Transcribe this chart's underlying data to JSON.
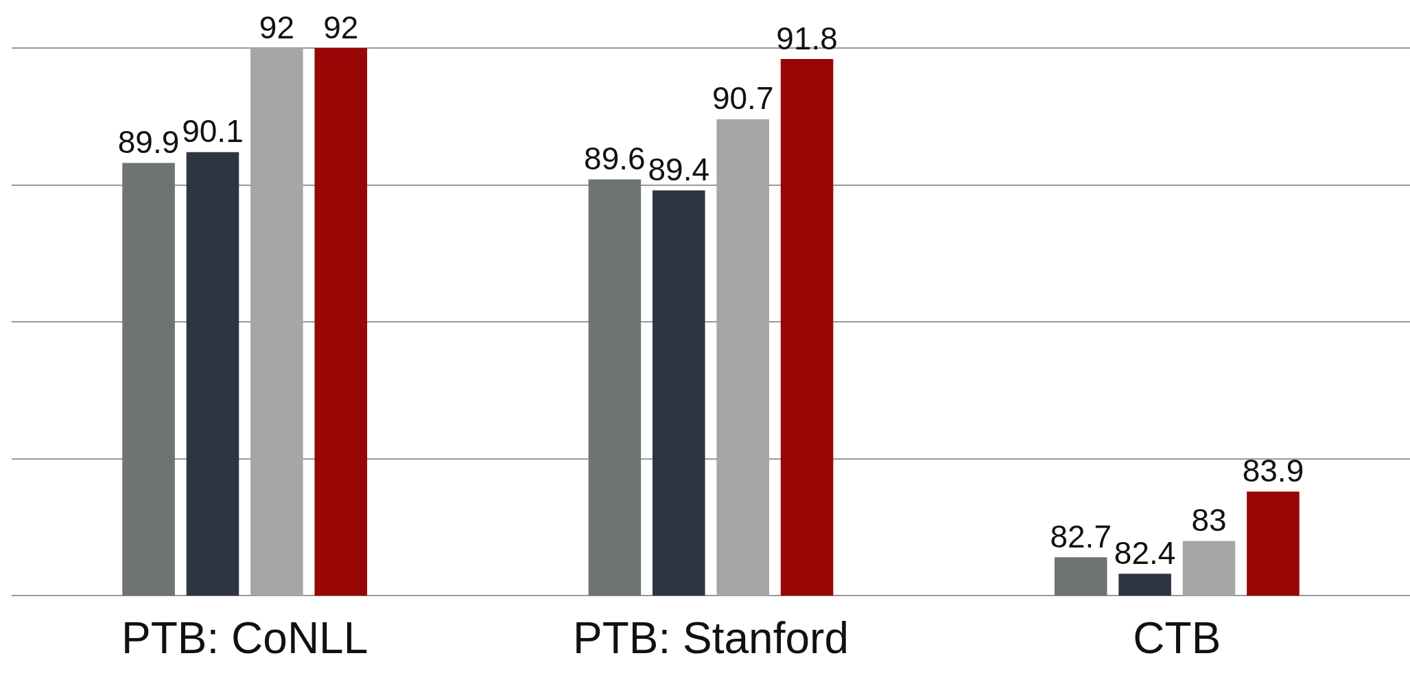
{
  "chart_data": {
    "type": "bar",
    "categories": [
      "PTB: CoNLL",
      "PTB: Stanford",
      "CTB"
    ],
    "series": [
      {
        "color": "#6e7471",
        "values": [
          89.9,
          89.6,
          82.7
        ]
      },
      {
        "color": "#2e3542",
        "values": [
          90.1,
          89.4,
          82.4
        ]
      },
      {
        "color": "#a6a6a6",
        "values": [
          92,
          90.7,
          83
        ]
      },
      {
        "color": "#990606",
        "values": [
          92,
          91.8,
          83.9
        ]
      }
    ],
    "ylim": [
      82,
      92
    ],
    "yticks": [
      {
        "value": 82,
        "label": null
      },
      {
        "value": 84.5,
        "label": null
      },
      {
        "value": 87,
        "label": null
      },
      {
        "value": 89.5,
        "label": null
      },
      {
        "value": 92,
        "label": null
      }
    ],
    "grid": "y",
    "tick_labels": "x",
    "legend": false,
    "data_labels": true
  }
}
